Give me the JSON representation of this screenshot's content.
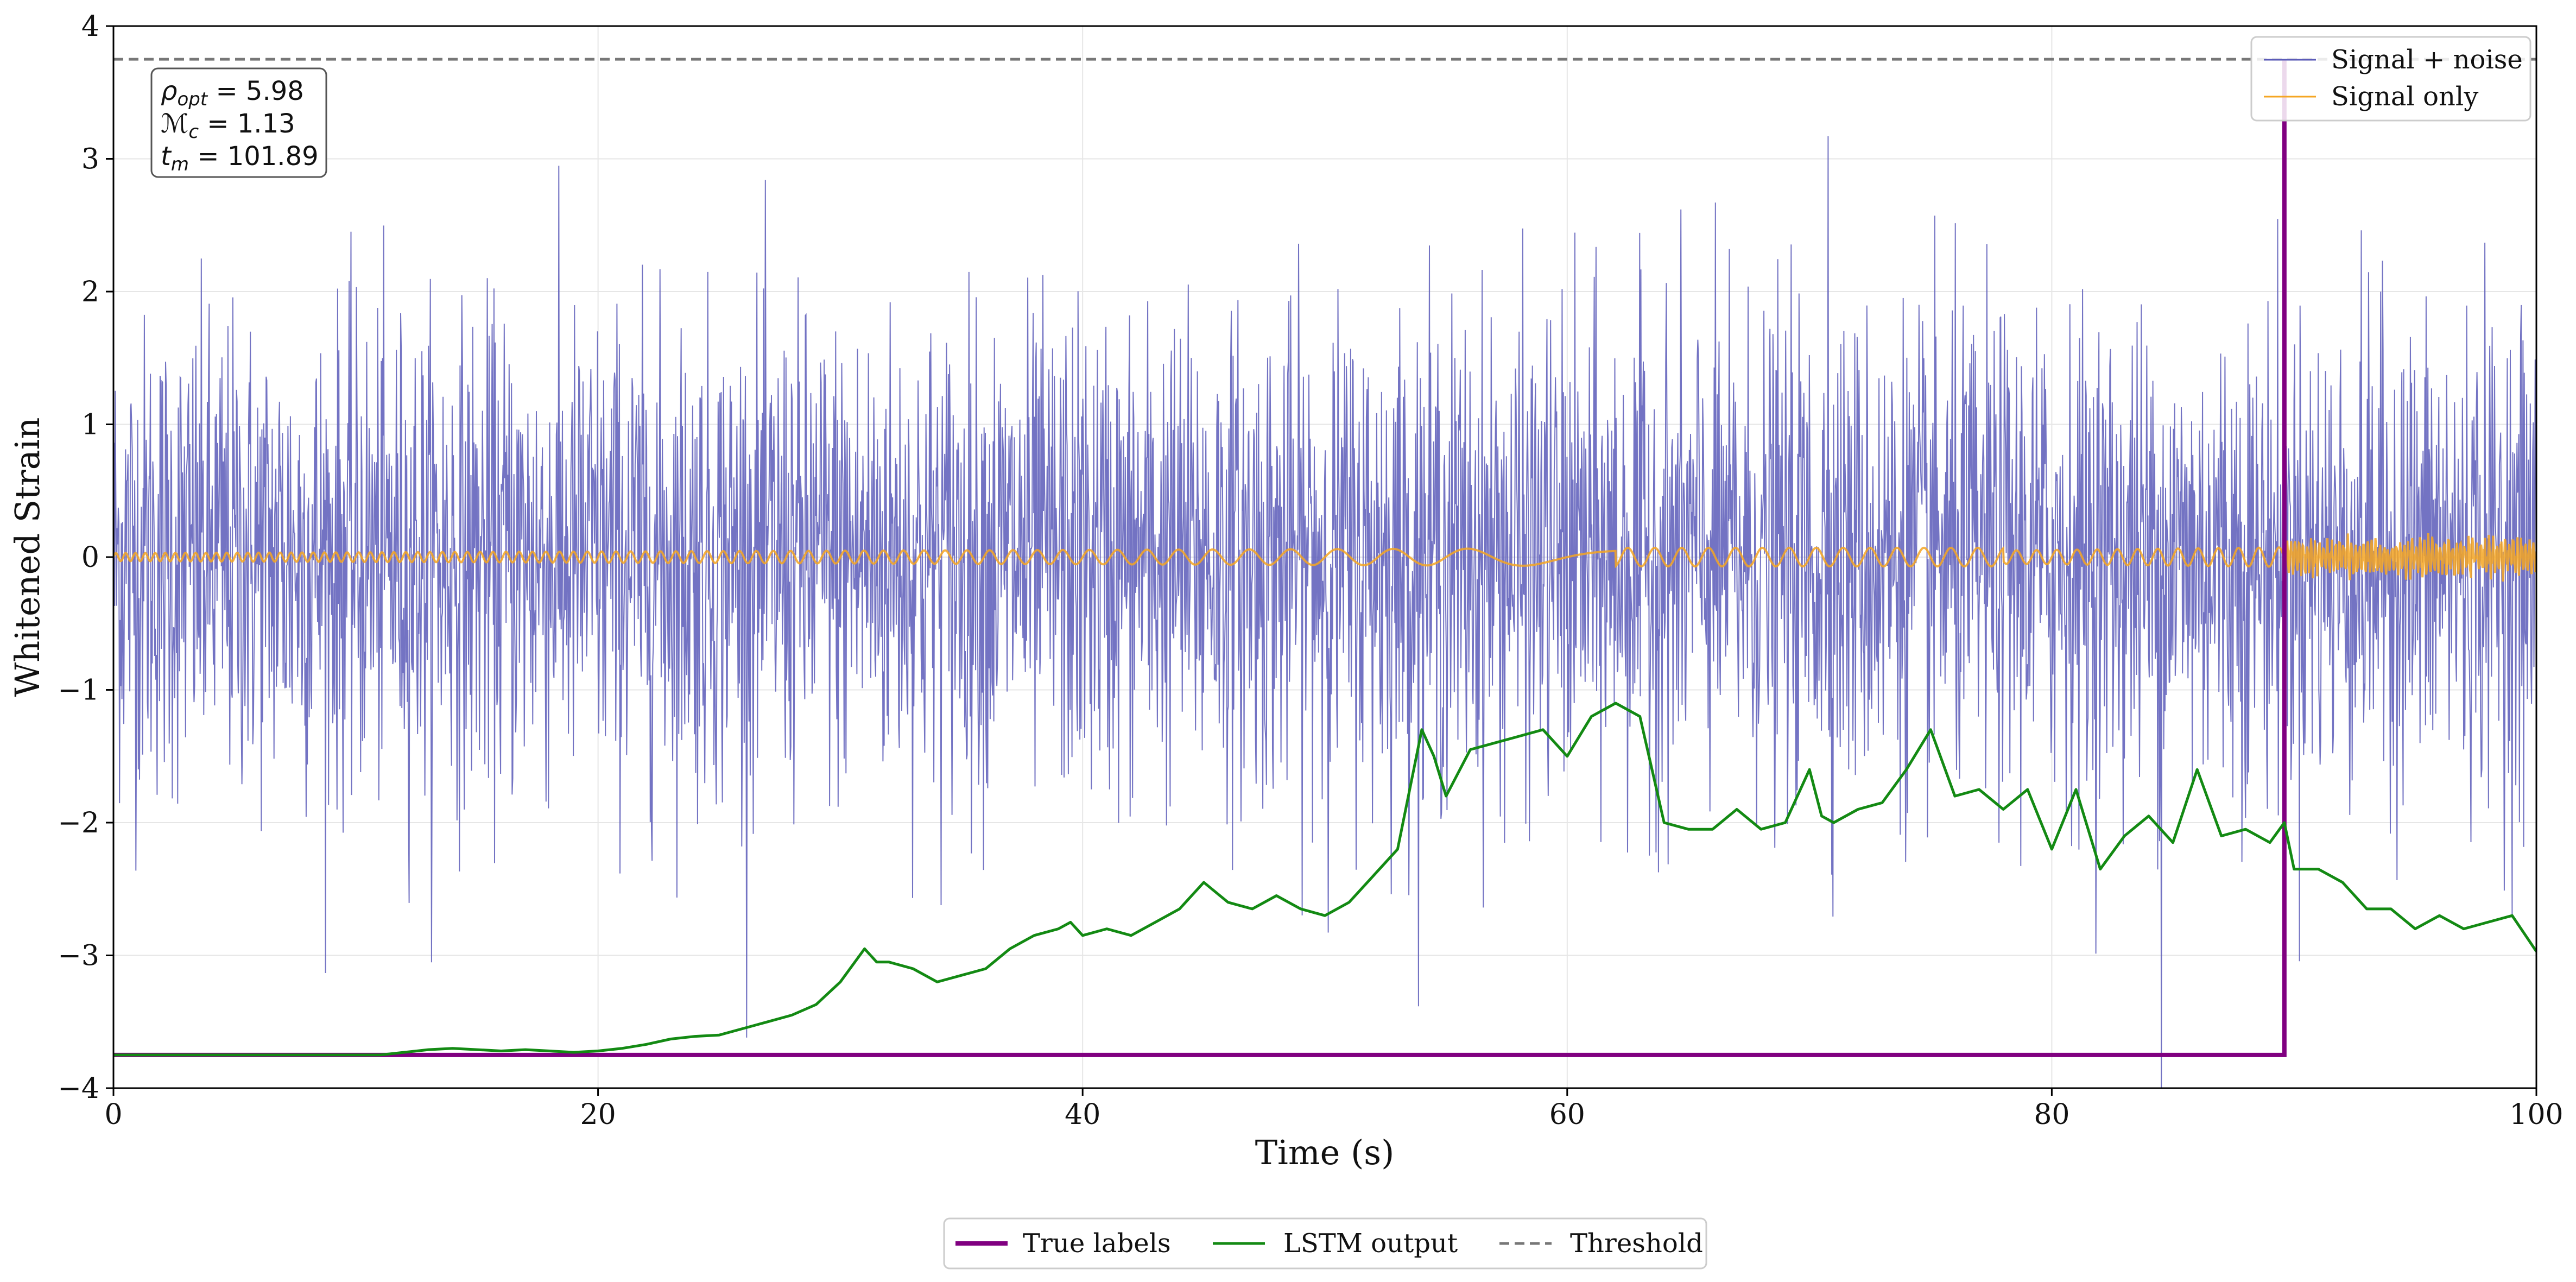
{
  "chart_data": {
    "type": "line",
    "title": "",
    "xlabel": "Time (s)",
    "ylabel": "Whitened Strain",
    "xlim": [
      0,
      100
    ],
    "ylim": [
      -4,
      4
    ],
    "xticks": [
      0,
      20,
      40,
      60,
      80,
      100
    ],
    "xtick_labels": [
      "0",
      "20",
      "40",
      "60",
      "80",
      "100"
    ],
    "yticks": [
      -4,
      -3,
      -2,
      -1,
      0,
      1,
      2,
      3,
      4
    ],
    "ytick_labels": [
      "−4",
      "−3",
      "−2",
      "−1",
      "0",
      "1",
      "2",
      "3",
      "4"
    ],
    "grid": true,
    "annotation_lines": [
      "ρopt = 5.98",
      "ℳc = 1.13",
      "tm = 101.89"
    ],
    "annotation_parts": [
      {
        "sym": "ρ",
        "sub": "opt",
        "val": " = 5.98"
      },
      {
        "sym": "ℳ",
        "sub": "c",
        "val": " = 1.13"
      },
      {
        "sym": "t",
        "sub": "m",
        "val": " = 101.89"
      }
    ],
    "legend_top_right": [
      "Signal + noise",
      "Signal only"
    ],
    "legend_bottom": [
      "True labels",
      "LSTM output",
      "Threshold"
    ],
    "series": [
      {
        "name": "Signal + noise",
        "color": "#5b5bb8",
        "kind": "noise",
        "amplitude_std": 0.9,
        "description": "whitened strain samples, approx. ±2.5 range with spikes to 3.2 and −4"
      },
      {
        "name": "Signal only",
        "color": "#f5a623",
        "kind": "chirp",
        "description": "oscillating signal near 0 with amplitude about 0.1"
      },
      {
        "name": "True labels",
        "color": "#800080",
        "kind": "step",
        "points": [
          [
            0,
            -3.75
          ],
          [
            89.6,
            -3.75
          ],
          [
            89.6,
            3.75
          ]
        ]
      },
      {
        "name": "LSTM output",
        "color": "#138a13",
        "x": [
          0,
          11,
          12,
          13,
          14,
          15,
          16,
          17,
          18,
          19,
          20,
          21,
          22,
          23,
          24,
          25,
          26,
          27,
          28,
          29,
          30,
          31,
          31.5,
          32,
          33,
          34,
          35,
          36,
          37,
          38,
          39,
          39.5,
          40,
          41,
          42,
          43,
          44,
          45,
          46,
          47,
          48,
          49,
          50,
          51,
          52,
          53,
          54,
          54.5,
          55,
          56,
          57,
          58,
          59,
          60,
          61,
          62,
          63,
          64,
          65,
          66,
          67,
          68,
          69,
          70,
          70.5,
          71,
          72,
          73,
          74,
          75,
          76,
          77,
          78,
          79,
          80,
          81,
          82,
          83,
          84,
          85,
          86,
          87,
          88,
          89,
          89.6,
          90,
          91,
          92,
          93,
          94,
          95,
          96,
          97,
          98,
          99,
          100
        ],
        "y": [
          -3.75,
          -3.75,
          -3.73,
          -3.71,
          -3.7,
          -3.71,
          -3.72,
          -3.71,
          -3.72,
          -3.73,
          -3.72,
          -3.7,
          -3.67,
          -3.63,
          -3.61,
          -3.6,
          -3.55,
          -3.5,
          -3.45,
          -3.37,
          -3.2,
          -2.95,
          -3.05,
          -3.05,
          -3.1,
          -3.2,
          -3.15,
          -3.1,
          -2.95,
          -2.85,
          -2.8,
          -2.75,
          -2.85,
          -2.8,
          -2.85,
          -2.75,
          -2.65,
          -2.45,
          -2.6,
          -2.65,
          -2.55,
          -2.65,
          -2.7,
          -2.6,
          -2.4,
          -2.2,
          -1.3,
          -1.5,
          -1.8,
          -1.45,
          -1.4,
          -1.35,
          -1.3,
          -1.5,
          -1.2,
          -1.1,
          -1.2,
          -2.0,
          -2.05,
          -2.05,
          -1.9,
          -2.05,
          -2.0,
          -1.6,
          -1.95,
          -2.0,
          -1.9,
          -1.85,
          -1.6,
          -1.3,
          -1.8,
          -1.75,
          -1.9,
          -1.75,
          -2.2,
          -1.75,
          -2.35,
          -2.1,
          -1.95,
          -2.15,
          -1.6,
          -2.1,
          -2.05,
          -2.15,
          -2.0,
          -2.35,
          -2.35,
          -2.45,
          -2.65,
          -2.65,
          -2.8,
          -2.7,
          -2.8,
          -2.75,
          -2.7,
          -2.97
        ]
      },
      {
        "name": "Threshold",
        "color": "#777777",
        "kind": "hline",
        "y": 3.75
      }
    ]
  }
}
